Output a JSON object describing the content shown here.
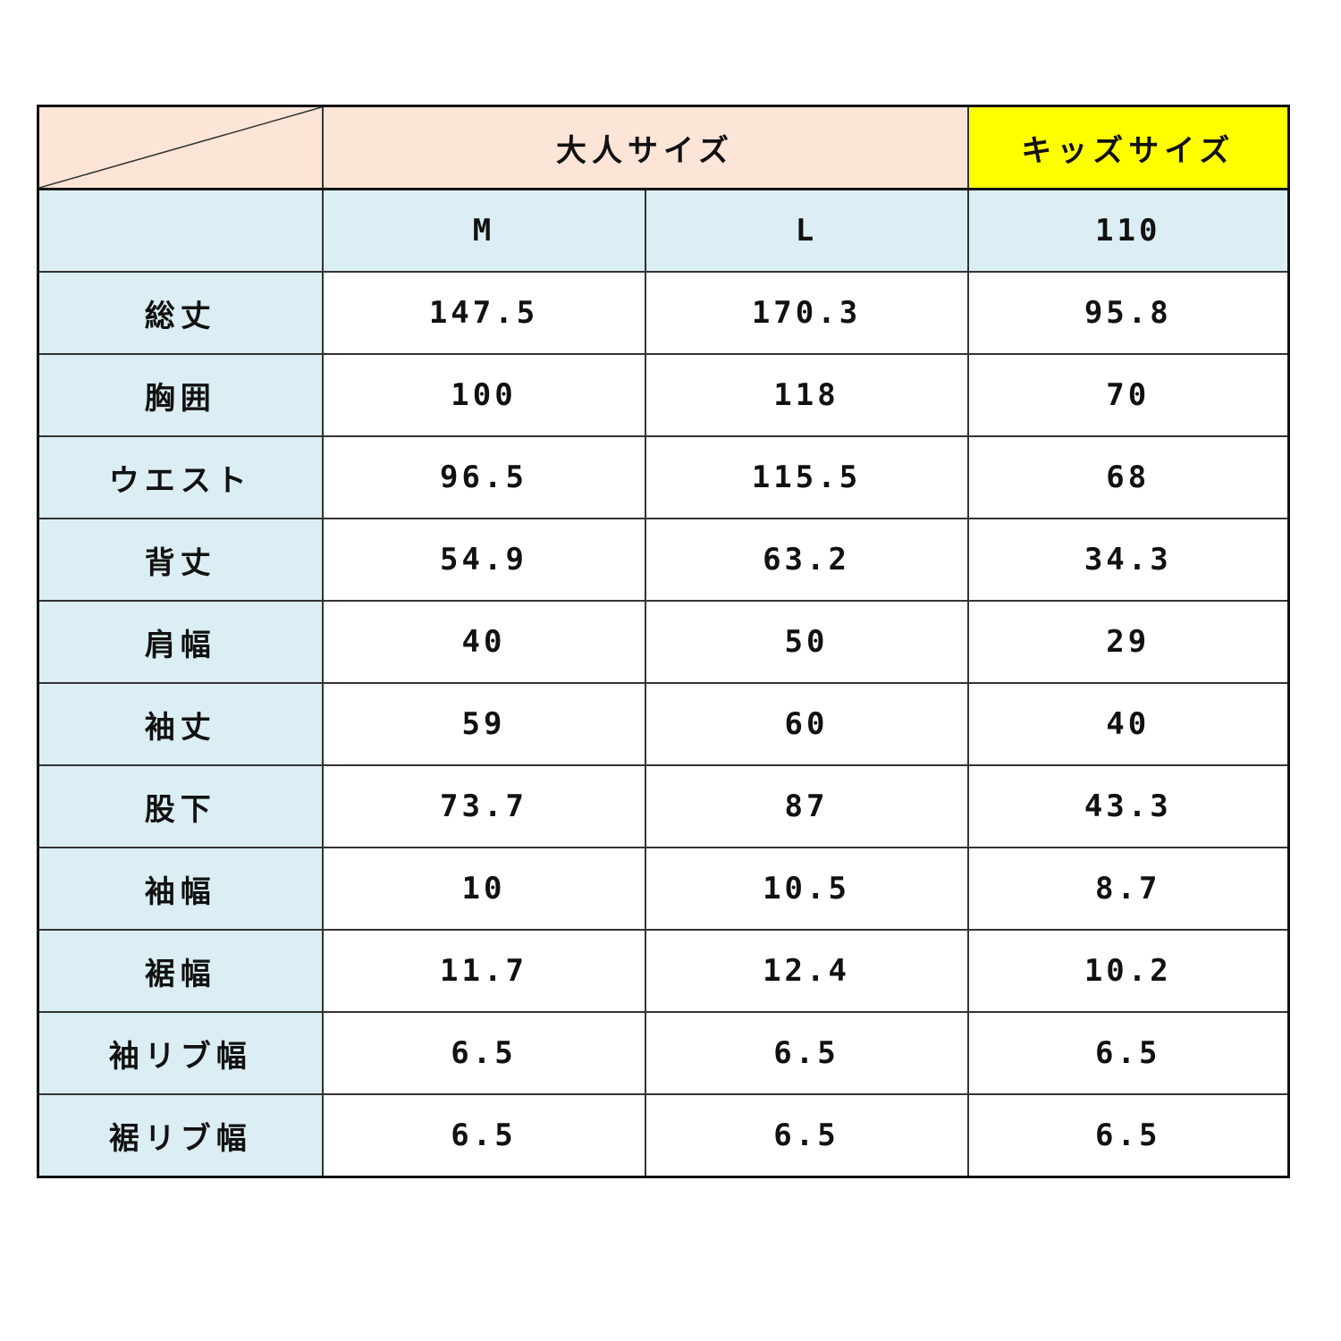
{
  "header": {
    "adult_label": "大人サイズ",
    "kids_label": "キッズサイズ"
  },
  "sizes": [
    "M",
    "L",
    "110"
  ],
  "rows": [
    {
      "label": "総丈",
      "values": [
        "147.5",
        "170.3",
        "95.8"
      ]
    },
    {
      "label": "胸囲",
      "values": [
        "100",
        "118",
        "70"
      ]
    },
    {
      "label": "ウエスト",
      "values": [
        "96.5",
        "115.5",
        "68"
      ]
    },
    {
      "label": "背丈",
      "values": [
        "54.9",
        "63.2",
        "34.3"
      ]
    },
    {
      "label": "肩幅",
      "values": [
        "40",
        "50",
        "29"
      ]
    },
    {
      "label": "袖丈",
      "values": [
        "59",
        "60",
        "40"
      ]
    },
    {
      "label": "股下",
      "values": [
        "73.7",
        "87",
        "43.3"
      ]
    },
    {
      "label": "袖幅",
      "values": [
        "10",
        "10.5",
        "8.7"
      ]
    },
    {
      "label": "裾幅",
      "values": [
        "11.7",
        "12.4",
        "10.2"
      ]
    },
    {
      "label": "袖リブ幅",
      "values": [
        "6.5",
        "6.5",
        "6.5"
      ]
    },
    {
      "label": "裾リブ幅",
      "values": [
        "6.5",
        "6.5",
        "6.5"
      ]
    }
  ],
  "colors": {
    "header_peach": "#fce4d6",
    "kids_yellow": "#ffff00",
    "label_blue": "#daeef3"
  }
}
